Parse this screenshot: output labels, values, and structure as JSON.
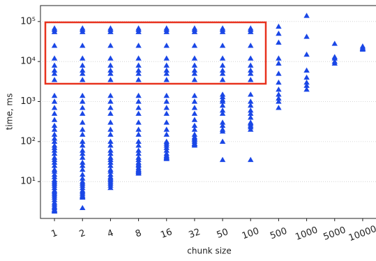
{
  "chart_data": {
    "type": "scatter",
    "xlabel": "chunk size",
    "ylabel": "time, ms",
    "categories": [
      "1",
      "2",
      "4",
      "8",
      "16",
      "32",
      "50",
      "100",
      "500",
      "1000",
      "5000",
      "10000"
    ],
    "values": [
      [
        68000,
        62000,
        55000,
        25000,
        12000,
        8000,
        6000,
        5000,
        3500,
        1400,
        1000,
        700,
        500,
        350,
        250,
        200,
        150,
        120,
        100,
        80,
        70,
        60,
        50,
        40,
        35,
        30,
        25,
        20,
        18,
        15,
        13,
        11,
        10,
        9,
        8,
        7,
        6,
        5.5,
        5,
        4.5,
        4,
        3.5,
        3,
        2.7,
        2.4,
        2.2,
        2,
        1.9,
        1.8
      ],
      [
        68000,
        62000,
        55000,
        25000,
        12000,
        8000,
        6000,
        5000,
        3500,
        1400,
        1000,
        700,
        500,
        300,
        200,
        150,
        100,
        80,
        60,
        50,
        40,
        30,
        25,
        20,
        15,
        12,
        10,
        9,
        8,
        7,
        6,
        5.5,
        5,
        4.5,
        4.2,
        4,
        2.2
      ],
      [
        68000,
        62000,
        55000,
        25000,
        12000,
        8000,
        6000,
        5000,
        3500,
        1400,
        1000,
        700,
        500,
        300,
        200,
        150,
        100,
        80,
        60,
        50,
        40,
        35,
        30,
        25,
        20,
        18,
        15,
        13,
        12,
        11,
        10,
        9,
        8,
        7
      ],
      [
        68000,
        62000,
        55000,
        25000,
        12000,
        8000,
        6000,
        5000,
        3500,
        1400,
        1000,
        700,
        500,
        300,
        200,
        150,
        100,
        80,
        60,
        50,
        40,
        35,
        30,
        27,
        25,
        22,
        20,
        19,
        18,
        17,
        16
      ],
      [
        68000,
        62000,
        55000,
        25000,
        12000,
        8000,
        6000,
        5000,
        3500,
        1400,
        1000,
        700,
        500,
        300,
        200,
        150,
        100,
        90,
        80,
        70,
        60,
        50,
        45,
        42,
        40,
        38,
        37
      ],
      [
        68000,
        62000,
        55000,
        25000,
        12000,
        8000,
        6000,
        5000,
        3500,
        1400,
        1000,
        700,
        500,
        350,
        250,
        200,
        150,
        130,
        120,
        110,
        100,
        90,
        85,
        80
      ],
      [
        68000,
        62000,
        55000,
        25000,
        12000,
        8000,
        6000,
        5000,
        3500,
        1500,
        1300,
        1100,
        1000,
        800,
        600,
        500,
        300,
        250,
        200,
        180,
        100,
        35
      ],
      [
        68000,
        62000,
        55000,
        25000,
        12000,
        8000,
        6000,
        5000,
        3500,
        1500,
        1000,
        800,
        600,
        500,
        400,
        300,
        280,
        250,
        230,
        200,
        35
      ],
      [
        75000,
        50000,
        30000,
        12000,
        9000,
        5000,
        3000,
        2000,
        1500,
        1200,
        1000,
        700
      ],
      [
        140000,
        42000,
        15000,
        6000,
        4000,
        3000,
        2500,
        2000
      ],
      [
        28000,
        13000,
        12000,
        10000,
        9000
      ],
      [
        24000,
        22000,
        21000,
        20000
      ]
    ],
    "color": "#1a47e6",
    "log_y": true,
    "grid": true,
    "ylim": [
      1.2,
      250000
    ],
    "yticks": [
      {
        "value": 10,
        "label": "10¹"
      },
      {
        "value": 100,
        "label": "10²"
      },
      {
        "value": 1000,
        "label": "10³"
      },
      {
        "value": 10000,
        "label": "10⁴"
      },
      {
        "value": 100000,
        "label": "10⁵"
      }
    ]
  }
}
